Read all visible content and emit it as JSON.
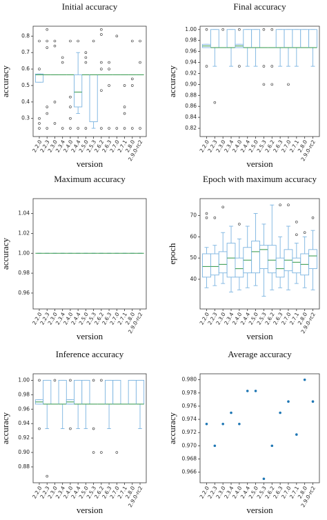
{
  "chart_data": [
    {
      "type": "box",
      "title": "Initial accuracy",
      "x_label": "version",
      "y_label": "accuracy",
      "categories": [
        "2.2.0",
        "2.2.3",
        "2.3.0",
        "2.3.4",
        "2.4.0",
        "2.4.4",
        "2.5.0",
        "2.5.3",
        "2.6.2",
        "2.6.3",
        "2.7.0",
        "2.7.1",
        "2.8.0",
        "2.9.0-rc2"
      ],
      "ylim": [
        0.19,
        0.86
      ],
      "yticks": [
        0.3,
        0.4,
        0.5,
        0.6,
        0.7,
        0.8
      ],
      "color": "#7ab3e0",
      "median_color": "#3f9e55",
      "boxes": [
        {
          "whislo": 0.52,
          "q1": 0.52,
          "med": 0.565,
          "q3": 0.57,
          "whishi": 0.57,
          "fliers": [
            0.77,
            0.6,
            0.3,
            0.27,
            0.24
          ]
        },
        {
          "whislo": 0.565,
          "q1": 0.565,
          "med": 0.565,
          "q3": 0.565,
          "whishi": 0.565,
          "fliers": [
            0.84,
            0.77,
            0.73,
            0.37,
            0.33,
            0.24
          ]
        },
        {
          "whislo": 0.565,
          "q1": 0.565,
          "med": 0.565,
          "q3": 0.565,
          "whishi": 0.565,
          "fliers": [
            0.77,
            0.74,
            0.4,
            0.27
          ]
        },
        {
          "whislo": 0.565,
          "q1": 0.565,
          "med": 0.565,
          "q3": 0.565,
          "whishi": 0.565,
          "fliers": [
            0.67,
            0.64,
            0.24
          ]
        },
        {
          "whislo": 0.565,
          "q1": 0.565,
          "med": 0.565,
          "q3": 0.565,
          "whishi": 0.565,
          "fliers": [
            0.77,
            0.43,
            0.37,
            0.3,
            0.24
          ]
        },
        {
          "whislo": 0.33,
          "q1": 0.37,
          "med": 0.46,
          "q3": 0.565,
          "whishi": 0.7,
          "fliers": [
            0.77,
            0.24
          ]
        },
        {
          "whislo": 0.565,
          "q1": 0.565,
          "med": 0.565,
          "q3": 0.565,
          "whishi": 0.565,
          "fliers": [
            0.7,
            0.67,
            0.64,
            0.24
          ]
        },
        {
          "whislo": 0.24,
          "q1": 0.28,
          "med": 0.565,
          "q3": 0.565,
          "whishi": 0.565,
          "fliers": [
            0.77
          ]
        },
        {
          "whislo": 0.565,
          "q1": 0.565,
          "med": 0.565,
          "q3": 0.565,
          "whishi": 0.565,
          "fliers": [
            0.84,
            0.81,
            0.64,
            0.6,
            0.47,
            0.24
          ]
        },
        {
          "whislo": 0.565,
          "q1": 0.565,
          "med": 0.565,
          "q3": 0.565,
          "whishi": 0.565,
          "fliers": [
            0.64,
            0.6,
            0.5,
            0.24
          ]
        },
        {
          "whislo": 0.565,
          "q1": 0.565,
          "med": 0.565,
          "q3": 0.565,
          "whishi": 0.565,
          "fliers": [
            0.8,
            0.24
          ]
        },
        {
          "whislo": 0.565,
          "q1": 0.565,
          "med": 0.565,
          "q3": 0.565,
          "whishi": 0.565,
          "fliers": [
            0.5,
            0.37,
            0.33,
            0.24
          ]
        },
        {
          "whislo": 0.565,
          "q1": 0.565,
          "med": 0.565,
          "q3": 0.565,
          "whishi": 0.565,
          "fliers": [
            0.77,
            0.54,
            0.5,
            0.24
          ]
        },
        {
          "whislo": 0.565,
          "q1": 0.565,
          "med": 0.565,
          "q3": 0.565,
          "whishi": 0.565,
          "fliers": [
            0.77,
            0.64,
            0.24
          ]
        }
      ]
    },
    {
      "type": "box",
      "title": "Final accuracy",
      "x_label": "version",
      "y_label": "accuracy",
      "categories": [
        "2.2.0",
        "2.2.3",
        "2.3.0",
        "2.3.4",
        "2.4.0",
        "2.4.4",
        "2.5.0",
        "2.5.3",
        "2.6.2",
        "2.6.3",
        "2.7.0",
        "2.7.1",
        "2.8.0",
        "2.9.0-rc2"
      ],
      "ylim": [
        0.805,
        1.006
      ],
      "yticks": [
        0.82,
        0.84,
        0.86,
        0.88,
        {
          "value": 0.9,
          "label": "0.90"
        },
        0.92,
        0.94,
        0.96,
        0.98,
        {
          "value": 1,
          "label": "1.00"
        }
      ],
      "color": "#7ab3e0",
      "median_color": "#3f9e55",
      "boxes": [
        {
          "whislo": 0.967,
          "q1": 0.967,
          "med": 0.97,
          "q3": 0.973,
          "whishi": 0.973,
          "fliers": [
            1,
            0.933
          ]
        },
        {
          "whislo": 0.933,
          "q1": 0.967,
          "med": 0.967,
          "q3": 1,
          "whishi": 1,
          "fliers": [
            0.867
          ]
        },
        {
          "whislo": 0.967,
          "q1": 0.967,
          "med": 0.967,
          "q3": 0.967,
          "whishi": 0.967,
          "fliers": [
            1
          ]
        },
        {
          "whislo": 0.933,
          "q1": 0.967,
          "med": 0.967,
          "q3": 1,
          "whishi": 1,
          "fliers": []
        },
        {
          "whislo": 0.967,
          "q1": 0.967,
          "med": 0.97,
          "q3": 0.973,
          "whishi": 0.973,
          "fliers": [
            1,
            0.933
          ]
        },
        {
          "whislo": 0.933,
          "q1": 0.967,
          "med": 0.967,
          "q3": 1,
          "whishi": 1,
          "fliers": []
        },
        {
          "whislo": 0.933,
          "q1": 0.967,
          "med": 0.967,
          "q3": 1,
          "whishi": 1,
          "fliers": []
        },
        {
          "whislo": 0.967,
          "q1": 0.967,
          "med": 0.967,
          "q3": 0.967,
          "whishi": 0.967,
          "fliers": [
            1,
            0.933,
            0.9
          ]
        },
        {
          "whislo": 0.967,
          "q1": 0.967,
          "med": 0.967,
          "q3": 0.967,
          "whishi": 0.967,
          "fliers": [
            1,
            0.933,
            0.9
          ]
        },
        {
          "whislo": 0.933,
          "q1": 0.967,
          "med": 0.967,
          "q3": 1,
          "whishi": 1,
          "fliers": []
        },
        {
          "whislo": 0.933,
          "q1": 0.967,
          "med": 0.967,
          "q3": 1,
          "whishi": 1,
          "fliers": [
            0.9
          ]
        },
        {
          "whislo": 0.933,
          "q1": 0.967,
          "med": 0.967,
          "q3": 1,
          "whishi": 1,
          "fliers": []
        },
        {
          "whislo": 0.967,
          "q1": 0.967,
          "med": 0.967,
          "q3": 1,
          "whishi": 1,
          "fliers": []
        },
        {
          "whislo": 0.933,
          "q1": 0.967,
          "med": 0.967,
          "q3": 1,
          "whishi": 1,
          "fliers": []
        }
      ]
    },
    {
      "type": "box",
      "title": "Maximum accuracy",
      "x_label": "version",
      "y_label": "accuracy",
      "categories": [
        "2.2.0",
        "2.2.3",
        "2.3.0",
        "2.3.4",
        "2.4.0",
        "2.4.4",
        "2.5.0",
        "2.5.3",
        "2.6.2",
        "2.6.3",
        "2.7.0",
        "2.7.1",
        "2.8.0",
        "2.9.0-rc2"
      ],
      "ylim": [
        0.944,
        1.055
      ],
      "yticks": [
        0.96,
        0.98,
        {
          "value": 1,
          "label": "1.00"
        },
        1.02,
        1.04
      ],
      "color": "#7ab3e0",
      "median_color": "#3f9e55",
      "boxes": [
        {
          "whislo": 1,
          "q1": 1,
          "med": 1,
          "q3": 1,
          "whishi": 1,
          "fliers": []
        },
        {
          "whislo": 1,
          "q1": 1,
          "med": 1,
          "q3": 1,
          "whishi": 1,
          "fliers": []
        },
        {
          "whislo": 1,
          "q1": 1,
          "med": 1,
          "q3": 1,
          "whishi": 1,
          "fliers": []
        },
        {
          "whislo": 1,
          "q1": 1,
          "med": 1,
          "q3": 1,
          "whishi": 1,
          "fliers": []
        },
        {
          "whislo": 1,
          "q1": 1,
          "med": 1,
          "q3": 1,
          "whishi": 1,
          "fliers": []
        },
        {
          "whislo": 1,
          "q1": 1,
          "med": 1,
          "q3": 1,
          "whishi": 1,
          "fliers": []
        },
        {
          "whislo": 1,
          "q1": 1,
          "med": 1,
          "q3": 1,
          "whishi": 1,
          "fliers": []
        },
        {
          "whislo": 1,
          "q1": 1,
          "med": 1,
          "q3": 1,
          "whishi": 1,
          "fliers": []
        },
        {
          "whislo": 1,
          "q1": 1,
          "med": 1,
          "q3": 1,
          "whishi": 1,
          "fliers": []
        },
        {
          "whislo": 1,
          "q1": 1,
          "med": 1,
          "q3": 1,
          "whishi": 1,
          "fliers": []
        },
        {
          "whislo": 1,
          "q1": 1,
          "med": 1,
          "q3": 1,
          "whishi": 1,
          "fliers": []
        },
        {
          "whislo": 1,
          "q1": 1,
          "med": 1,
          "q3": 1,
          "whishi": 1,
          "fliers": []
        },
        {
          "whislo": 1,
          "q1": 1,
          "med": 1,
          "q3": 1,
          "whishi": 1,
          "fliers": []
        },
        {
          "whislo": 1,
          "q1": 1,
          "med": 1,
          "q3": 1,
          "whishi": 1,
          "fliers": []
        }
      ]
    },
    {
      "type": "box",
      "title": "Epoch with maximum accuracy",
      "x_label": "version",
      "y_label": "epoch",
      "categories": [
        "2.2.0",
        "2.2.3",
        "2.3.0",
        "2.3.4",
        "2.4.0",
        "2.4.4",
        "2.5.0",
        "2.5.3",
        "2.6.2",
        "2.6.3",
        "2.7.0",
        "2.7.1",
        "2.8.0",
        "2.9.0-rc2"
      ],
      "ylim": [
        26,
        78
      ],
      "yticks": [
        40,
        50,
        60,
        70
      ],
      "color": "#7ab3e0",
      "median_color": "#3f9e55",
      "boxes": [
        {
          "whislo": 36,
          "q1": 41,
          "med": 46,
          "q3": 52,
          "whishi": 55,
          "fliers": [
            69,
            71
          ]
        },
        {
          "whislo": 37,
          "q1": 42,
          "med": 46,
          "q3": 52,
          "whishi": 56,
          "fliers": [
            69
          ]
        },
        {
          "whislo": 38,
          "q1": 43,
          "med": 47,
          "q3": 53,
          "whishi": 62,
          "fliers": [
            74
          ]
        },
        {
          "whislo": 34,
          "q1": 41,
          "med": 50,
          "q3": 57,
          "whishi": 65,
          "fliers": []
        },
        {
          "whislo": 35,
          "q1": 41,
          "med": 45,
          "q3": 50,
          "whishi": 59,
          "fliers": [
            66
          ]
        },
        {
          "whislo": 36,
          "q1": 43,
          "med": 49,
          "q3": 55,
          "whishi": 65,
          "fliers": []
        },
        {
          "whislo": 37,
          "q1": 43,
          "med": 53,
          "q3": 58,
          "whishi": 71,
          "fliers": []
        },
        {
          "whislo": 32,
          "q1": 45,
          "med": 54,
          "q3": 56,
          "whishi": 66,
          "fliers": []
        },
        {
          "whislo": 35,
          "q1": 43,
          "med": 49,
          "q3": 56,
          "whishi": 75,
          "fliers": []
        },
        {
          "whislo": 36,
          "q1": 41,
          "med": 45,
          "q3": 50,
          "whishi": 60,
          "fliers": [
            75
          ]
        },
        {
          "whislo": 35,
          "q1": 44,
          "med": 49,
          "q3": 54,
          "whishi": 65,
          "fliers": [
            75
          ]
        },
        {
          "whislo": 38,
          "q1": 43,
          "med": 48,
          "q3": 50,
          "whishi": 57,
          "fliers": [
            61,
            67
          ]
        },
        {
          "whislo": 36,
          "q1": 42,
          "med": 47,
          "q3": 52,
          "whishi": 60,
          "fliers": [
            62
          ]
        },
        {
          "whislo": 35,
          "q1": 45,
          "med": 51,
          "q3": 54,
          "whishi": 63,
          "fliers": [
            69
          ]
        }
      ]
    },
    {
      "type": "box",
      "title": "Inference accuracy",
      "x_label": "version",
      "y_label": "accuracy",
      "categories": [
        "2.2.0",
        "2.2.3",
        "2.3.0",
        "2.3.4",
        "2.4.0",
        "2.4.4",
        "2.5.0",
        "2.5.3",
        "2.6.2",
        "2.6.3",
        "2.7.0",
        "2.7.1",
        "2.8.0",
        "2.9.0-rc2"
      ],
      "ylim": [
        0.858,
        1.009
      ],
      "yticks": [
        0.88,
        {
          "value": 0.9,
          "label": "0.90"
        },
        0.92,
        0.94,
        0.96,
        0.98,
        {
          "value": 1,
          "label": "1.00"
        }
      ],
      "color": "#7ab3e0",
      "median_color": "#3f9e55",
      "boxes": [
        {
          "whislo": 0.967,
          "q1": 0.967,
          "med": 0.97,
          "q3": 0.973,
          "whishi": 0.973,
          "fliers": [
            1,
            0.933
          ]
        },
        {
          "whislo": 0.933,
          "q1": 0.967,
          "med": 0.967,
          "q3": 1,
          "whishi": 1,
          "fliers": [
            0.867
          ]
        },
        {
          "whislo": 0.967,
          "q1": 0.967,
          "med": 0.967,
          "q3": 0.967,
          "whishi": 0.967,
          "fliers": [
            1
          ]
        },
        {
          "whislo": 0.933,
          "q1": 0.967,
          "med": 0.967,
          "q3": 1,
          "whishi": 1,
          "fliers": []
        },
        {
          "whislo": 0.967,
          "q1": 0.967,
          "med": 0.97,
          "q3": 0.973,
          "whishi": 0.973,
          "fliers": [
            1,
            0.933
          ]
        },
        {
          "whislo": 0.933,
          "q1": 0.967,
          "med": 0.967,
          "q3": 1,
          "whishi": 1,
          "fliers": []
        },
        {
          "whislo": 0.933,
          "q1": 0.967,
          "med": 0.967,
          "q3": 1,
          "whishi": 1,
          "fliers": []
        },
        {
          "whislo": 0.967,
          "q1": 0.967,
          "med": 0.967,
          "q3": 0.967,
          "whishi": 0.967,
          "fliers": [
            1,
            0.933,
            0.9
          ]
        },
        {
          "whislo": 0.967,
          "q1": 0.967,
          "med": 0.967,
          "q3": 0.967,
          "whishi": 0.967,
          "fliers": [
            1,
            0.9
          ]
        },
        {
          "whislo": 0.933,
          "q1": 0.967,
          "med": 0.967,
          "q3": 1,
          "whishi": 1,
          "fliers": []
        },
        {
          "whislo": 0.967,
          "q1": 0.967,
          "med": 0.967,
          "q3": 1,
          "whishi": 1,
          "fliers": [
            0.9
          ]
        },
        {
          "whislo": 0.967,
          "q1": 0.967,
          "med": 0.967,
          "q3": 0.967,
          "whishi": 0.967,
          "fliers": []
        },
        {
          "whislo": 0.967,
          "q1": 0.967,
          "med": 0.967,
          "q3": 1,
          "whishi": 1,
          "fliers": []
        },
        {
          "whislo": 0.933,
          "q1": 0.967,
          "med": 0.967,
          "q3": 1,
          "whishi": 1,
          "fliers": []
        }
      ]
    },
    {
      "type": "scatter",
      "title": "Average accuracy",
      "x_label": "version",
      "y_label": "accuracy",
      "categories": [
        "2.2.0",
        "2.2.3",
        "2.3.0",
        "2.3.4",
        "2.4.0",
        "2.4.4",
        "2.5.0",
        "2.5.3",
        "2.6.2",
        "2.6.3",
        "2.7.0",
        "2.7.1",
        "2.8.0",
        "2.9.0-rc2"
      ],
      "ylim": [
        0.9644,
        0.9809
      ],
      "yticks": [
        0.966,
        0.968,
        {
          "value": 0.97,
          "label": "0.970"
        },
        0.972,
        0.974,
        0.976,
        0.978,
        {
          "value": 0.98,
          "label": "0.980"
        }
      ],
      "color": "#1f77b4",
      "values": [
        0.9733,
        0.97,
        0.9733,
        0.975,
        0.9733,
        0.9783,
        0.9783,
        0.965,
        0.97,
        0.975,
        0.9767,
        0.9717,
        0.98,
        0.9767
      ]
    }
  ]
}
